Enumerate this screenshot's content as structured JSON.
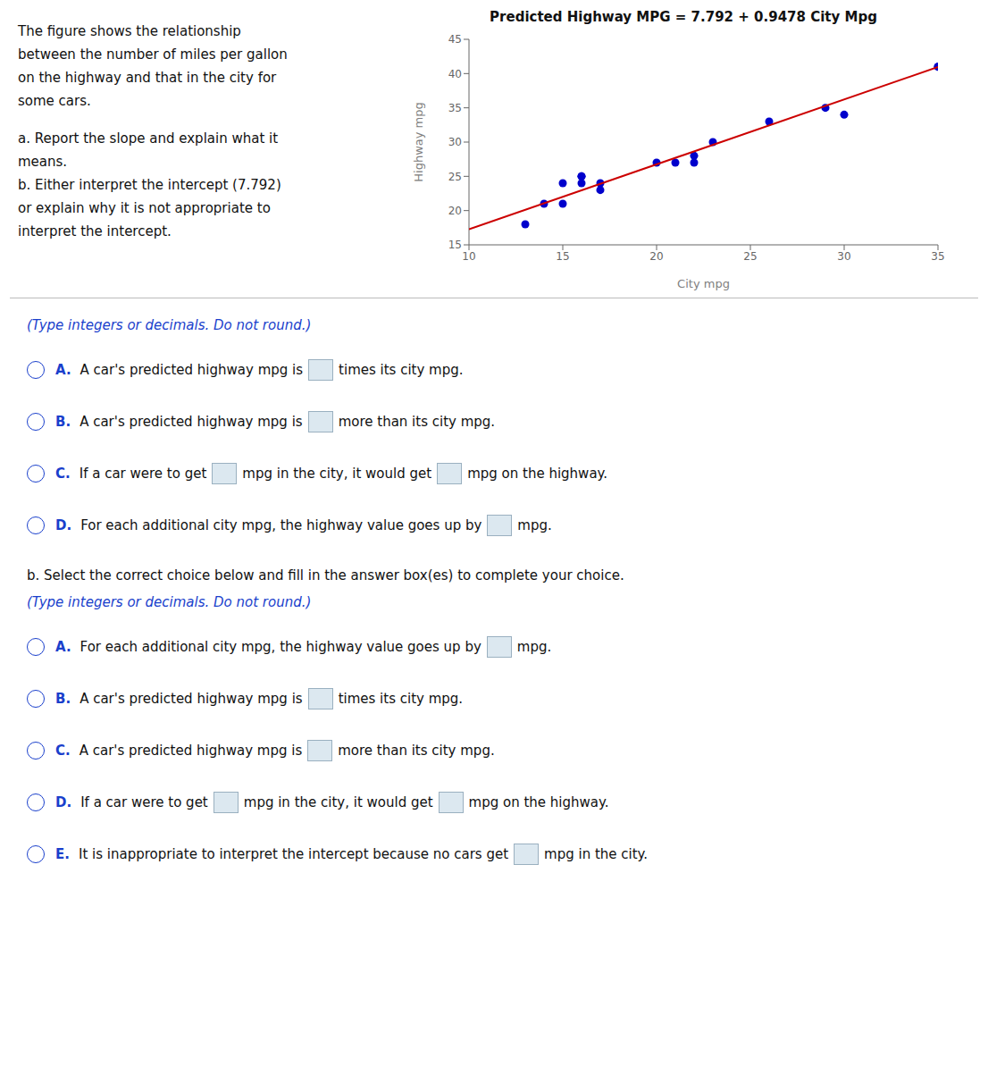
{
  "chart_data": {
    "type": "scatter",
    "title": "Predicted Highway MPG = 7.792 + 0.9478 City Mpg",
    "xlabel": "City mpg",
    "ylabel": "Highway mpg",
    "series": [
      {
        "type": "scatter",
        "marker": "circle",
        "color": "#0000cc",
        "x": [
          13,
          14,
          15,
          15,
          16,
          16,
          16,
          17,
          17,
          20,
          21,
          22,
          22,
          23,
          26,
          29,
          30,
          35,
          35
        ],
        "values": [
          18,
          21,
          21,
          24,
          24,
          25,
          25,
          24,
          23,
          27,
          27,
          27,
          28,
          30,
          33,
          35,
          34,
          41,
          41
        ]
      },
      {
        "type": "line",
        "line_style": "solid",
        "color": "#cc0000",
        "x": [
          10,
          35
        ],
        "values": [
          17.27,
          40.965
        ]
      }
    ],
    "xlim": [
      10,
      35
    ],
    "ylim": [
      15,
      45
    ],
    "xticks": [
      10,
      15,
      20,
      25,
      30,
      35
    ],
    "yticks": [
      15,
      20,
      25,
      30,
      35,
      40,
      45
    ],
    "grid": false,
    "annotations": [
      [
        "The figure shows the relationship",
        "between the number of miles per gallon",
        "on the highway and that in the city for",
        "some cars."
      ],
      [
        "a. Report the slope and explain what it",
        "means.",
        "b. Either interpret the intercept (7.792)",
        "or explain why it is not appropriate to",
        "interpret the intercept."
      ],
      [
        "(Type integers or decimals. Do not round.)",
        [
          "A.",
          "A car's predicted highway mpg is",
          "times its city mpg."
        ],
        [
          "B.",
          "A car's predicted highway mpg is",
          "more than its city mpg."
        ],
        [
          "C.",
          "If a car were to get",
          "mpg in the city, it would get",
          "mpg on the highway."
        ],
        [
          "D.",
          "For each additional city mpg, the highway value goes up by",
          "mpg."
        ]
      ],
      [
        "b. Select the correct choice below and fill in the answer box(es) to complete your choice.",
        "(Type integers or decimals. Do not round.)",
        [
          "A.",
          "For each additional city mpg, the highway value goes up by",
          "mpg."
        ],
        [
          "B.",
          "A car's predicted highway mpg is",
          "times its city mpg."
        ],
        [
          "C.",
          "A car's predicted highway mpg is",
          "more than its city mpg."
        ],
        [
          "D.",
          "If a car were to get",
          "mpg in the city, it would get",
          "mpg on the highway."
        ],
        [
          "E.",
          "It is inappropriate to interpret the intercept because no cars get",
          "mpg in the city."
        ]
      ]
    ]
  }
}
